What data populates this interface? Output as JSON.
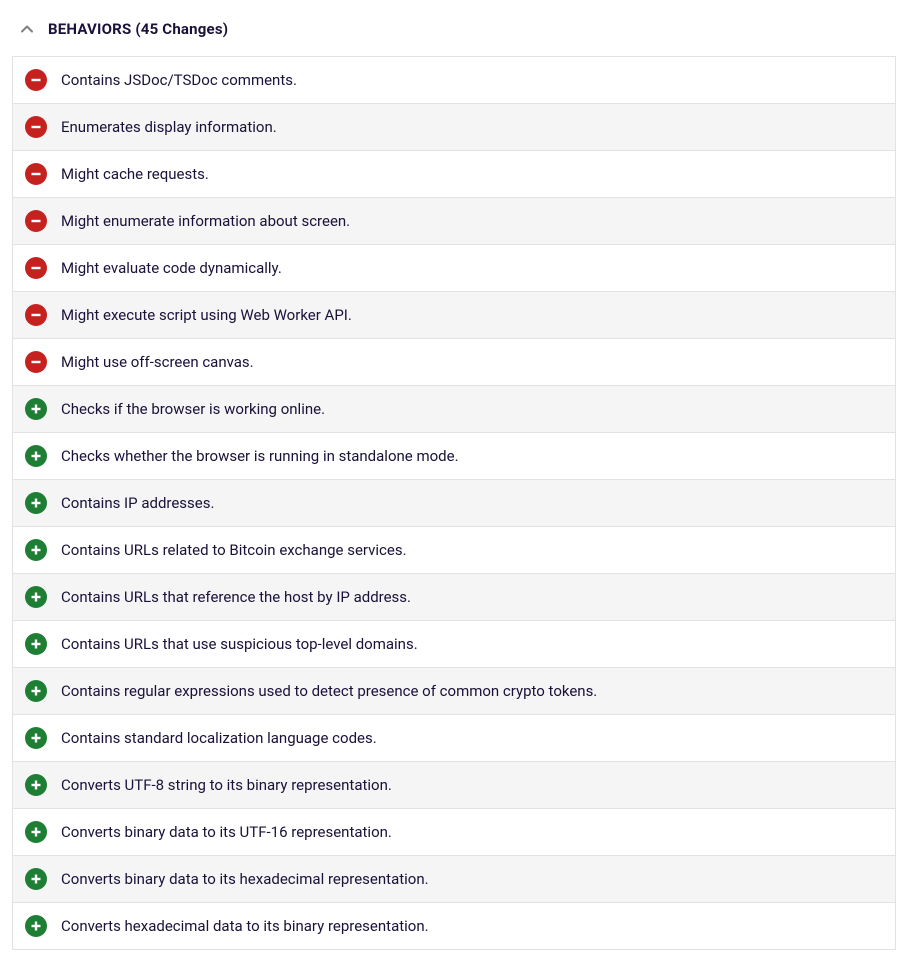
{
  "header": {
    "title": "BEHAVIORS (45 Changes)"
  },
  "colors": {
    "minus_bg": "#c5221f",
    "plus_bg": "#1e7e34",
    "text": "#1b1139",
    "alt_row_bg": "#f5f5f5",
    "row_bg": "#ffffff",
    "border": "#e2e2e2",
    "chevron": "#808080",
    "icon_symbol": "#ffffff"
  },
  "rows": [
    {
      "type": "minus",
      "label": "Contains JSDoc/TSDoc comments."
    },
    {
      "type": "minus",
      "label": "Enumerates display information."
    },
    {
      "type": "minus",
      "label": "Might cache requests."
    },
    {
      "type": "minus",
      "label": "Might enumerate information about screen."
    },
    {
      "type": "minus",
      "label": "Might evaluate code dynamically."
    },
    {
      "type": "minus",
      "label": "Might execute script using Web Worker API."
    },
    {
      "type": "minus",
      "label": "Might use off-screen canvas."
    },
    {
      "type": "plus",
      "label": "Checks if the browser is working online."
    },
    {
      "type": "plus",
      "label": "Checks whether the browser is running in standalone mode."
    },
    {
      "type": "plus",
      "label": "Contains IP addresses."
    },
    {
      "type": "plus",
      "label": "Contains URLs related to Bitcoin exchange services."
    },
    {
      "type": "plus",
      "label": "Contains URLs that reference the host by IP address."
    },
    {
      "type": "plus",
      "label": "Contains URLs that use suspicious top-level domains."
    },
    {
      "type": "plus",
      "label": "Contains regular expressions used to detect presence of common crypto tokens."
    },
    {
      "type": "plus",
      "label": "Contains standard localization language codes."
    },
    {
      "type": "plus",
      "label": "Converts UTF-8 string to its binary representation."
    },
    {
      "type": "plus",
      "label": "Converts binary data to its UTF-16 representation."
    },
    {
      "type": "plus",
      "label": "Converts binary data to its hexadecimal representation."
    },
    {
      "type": "plus",
      "label": "Converts hexadecimal data to its binary representation."
    }
  ]
}
